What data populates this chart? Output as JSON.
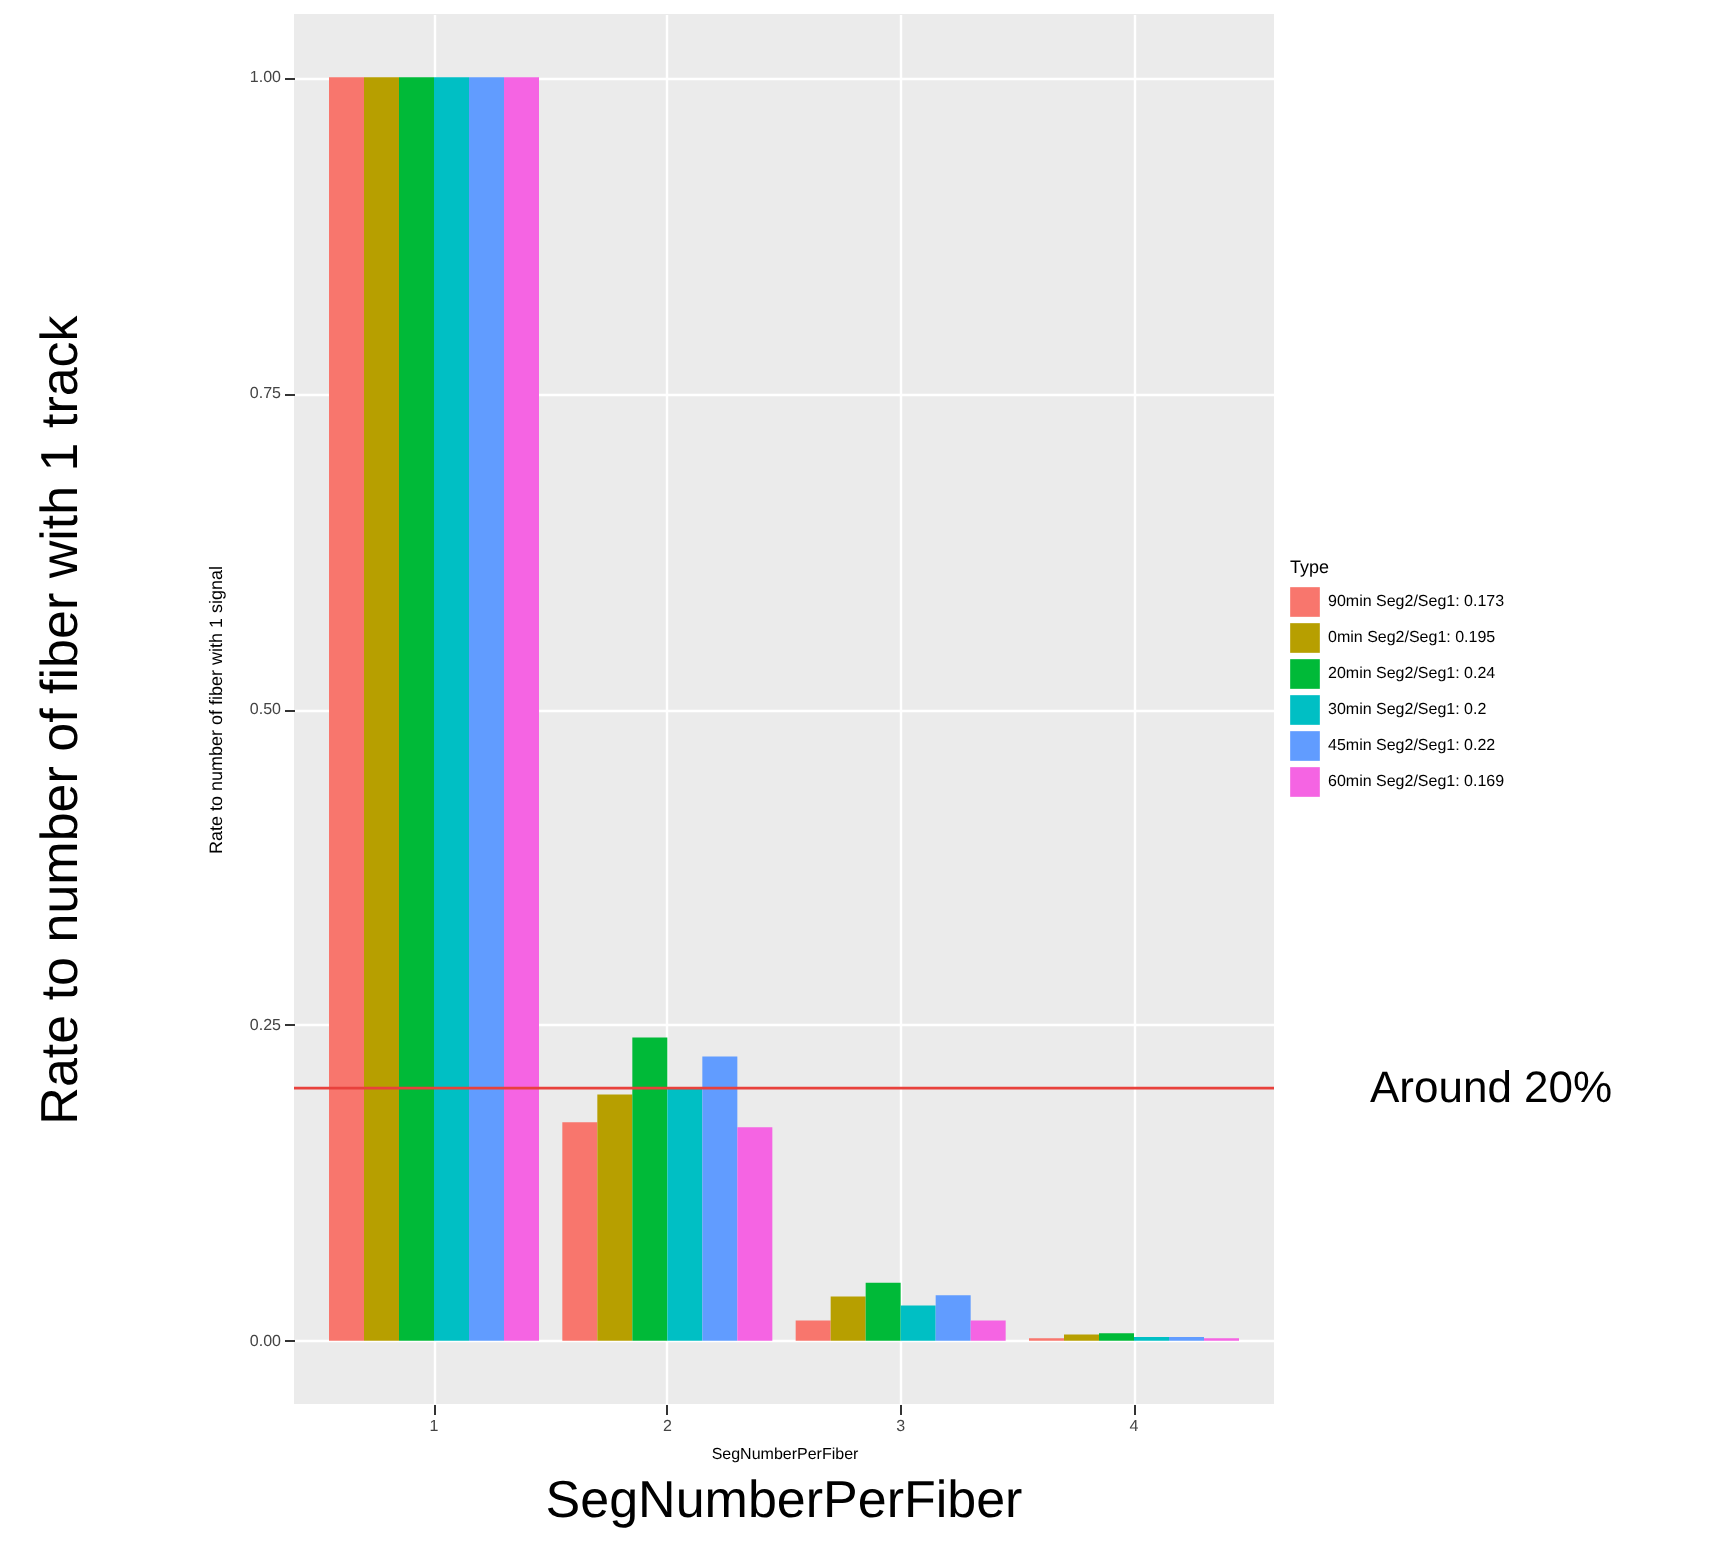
{
  "chart_data": {
    "type": "bar",
    "xlabel": "SegNumberPerFiber",
    "ylabel": "Rate to number of fiber with 1 signal",
    "legend_title": "Type",
    "legend": "right",
    "grid": true,
    "categories": [
      "1",
      "2",
      "3",
      "4"
    ],
    "series": [
      {
        "name": "90min Seg2/Seg1: 0.173",
        "color": "#f8766d",
        "values": [
          1.0,
          0.173,
          0.016,
          0.002
        ]
      },
      {
        "name": "0min Seg2/Seg1: 0.195",
        "color": "#b79f00",
        "values": [
          1.0,
          0.195,
          0.035,
          0.005
        ]
      },
      {
        "name": "20min Seg2/Seg1: 0.24",
        "color": "#00ba38",
        "values": [
          1.0,
          0.24,
          0.046,
          0.006
        ]
      },
      {
        "name": "30min Seg2/Seg1: 0.2",
        "color": "#00bfc4",
        "values": [
          1.0,
          0.2,
          0.028,
          0.003
        ]
      },
      {
        "name": "45min Seg2/Seg1: 0.22",
        "color": "#619cff",
        "values": [
          1.0,
          0.225,
          0.036,
          0.003
        ]
      },
      {
        "name": "60min Seg2/Seg1: 0.169",
        "color": "#f564e3",
        "values": [
          1.0,
          0.169,
          0.016,
          0.002
        ]
      }
    ],
    "ylim": [
      -0.05,
      1.05
    ],
    "yticks": [
      {
        "value": 0,
        "label": "0.00"
      },
      {
        "value": 0.25,
        "label": "0.25"
      },
      {
        "value": 0.5,
        "label": "0.50"
      },
      {
        "value": 0.75,
        "label": "0.75"
      },
      {
        "value": 1,
        "label": "1.00"
      }
    ],
    "ref_lines": [
      {
        "axis": "y",
        "value": 0.2,
        "label": "Around 20%",
        "color": "#e8413c"
      }
    ],
    "annotations": [
      "Rate to number of fiber with 1 track",
      "SegNumberPerFiber"
    ]
  }
}
